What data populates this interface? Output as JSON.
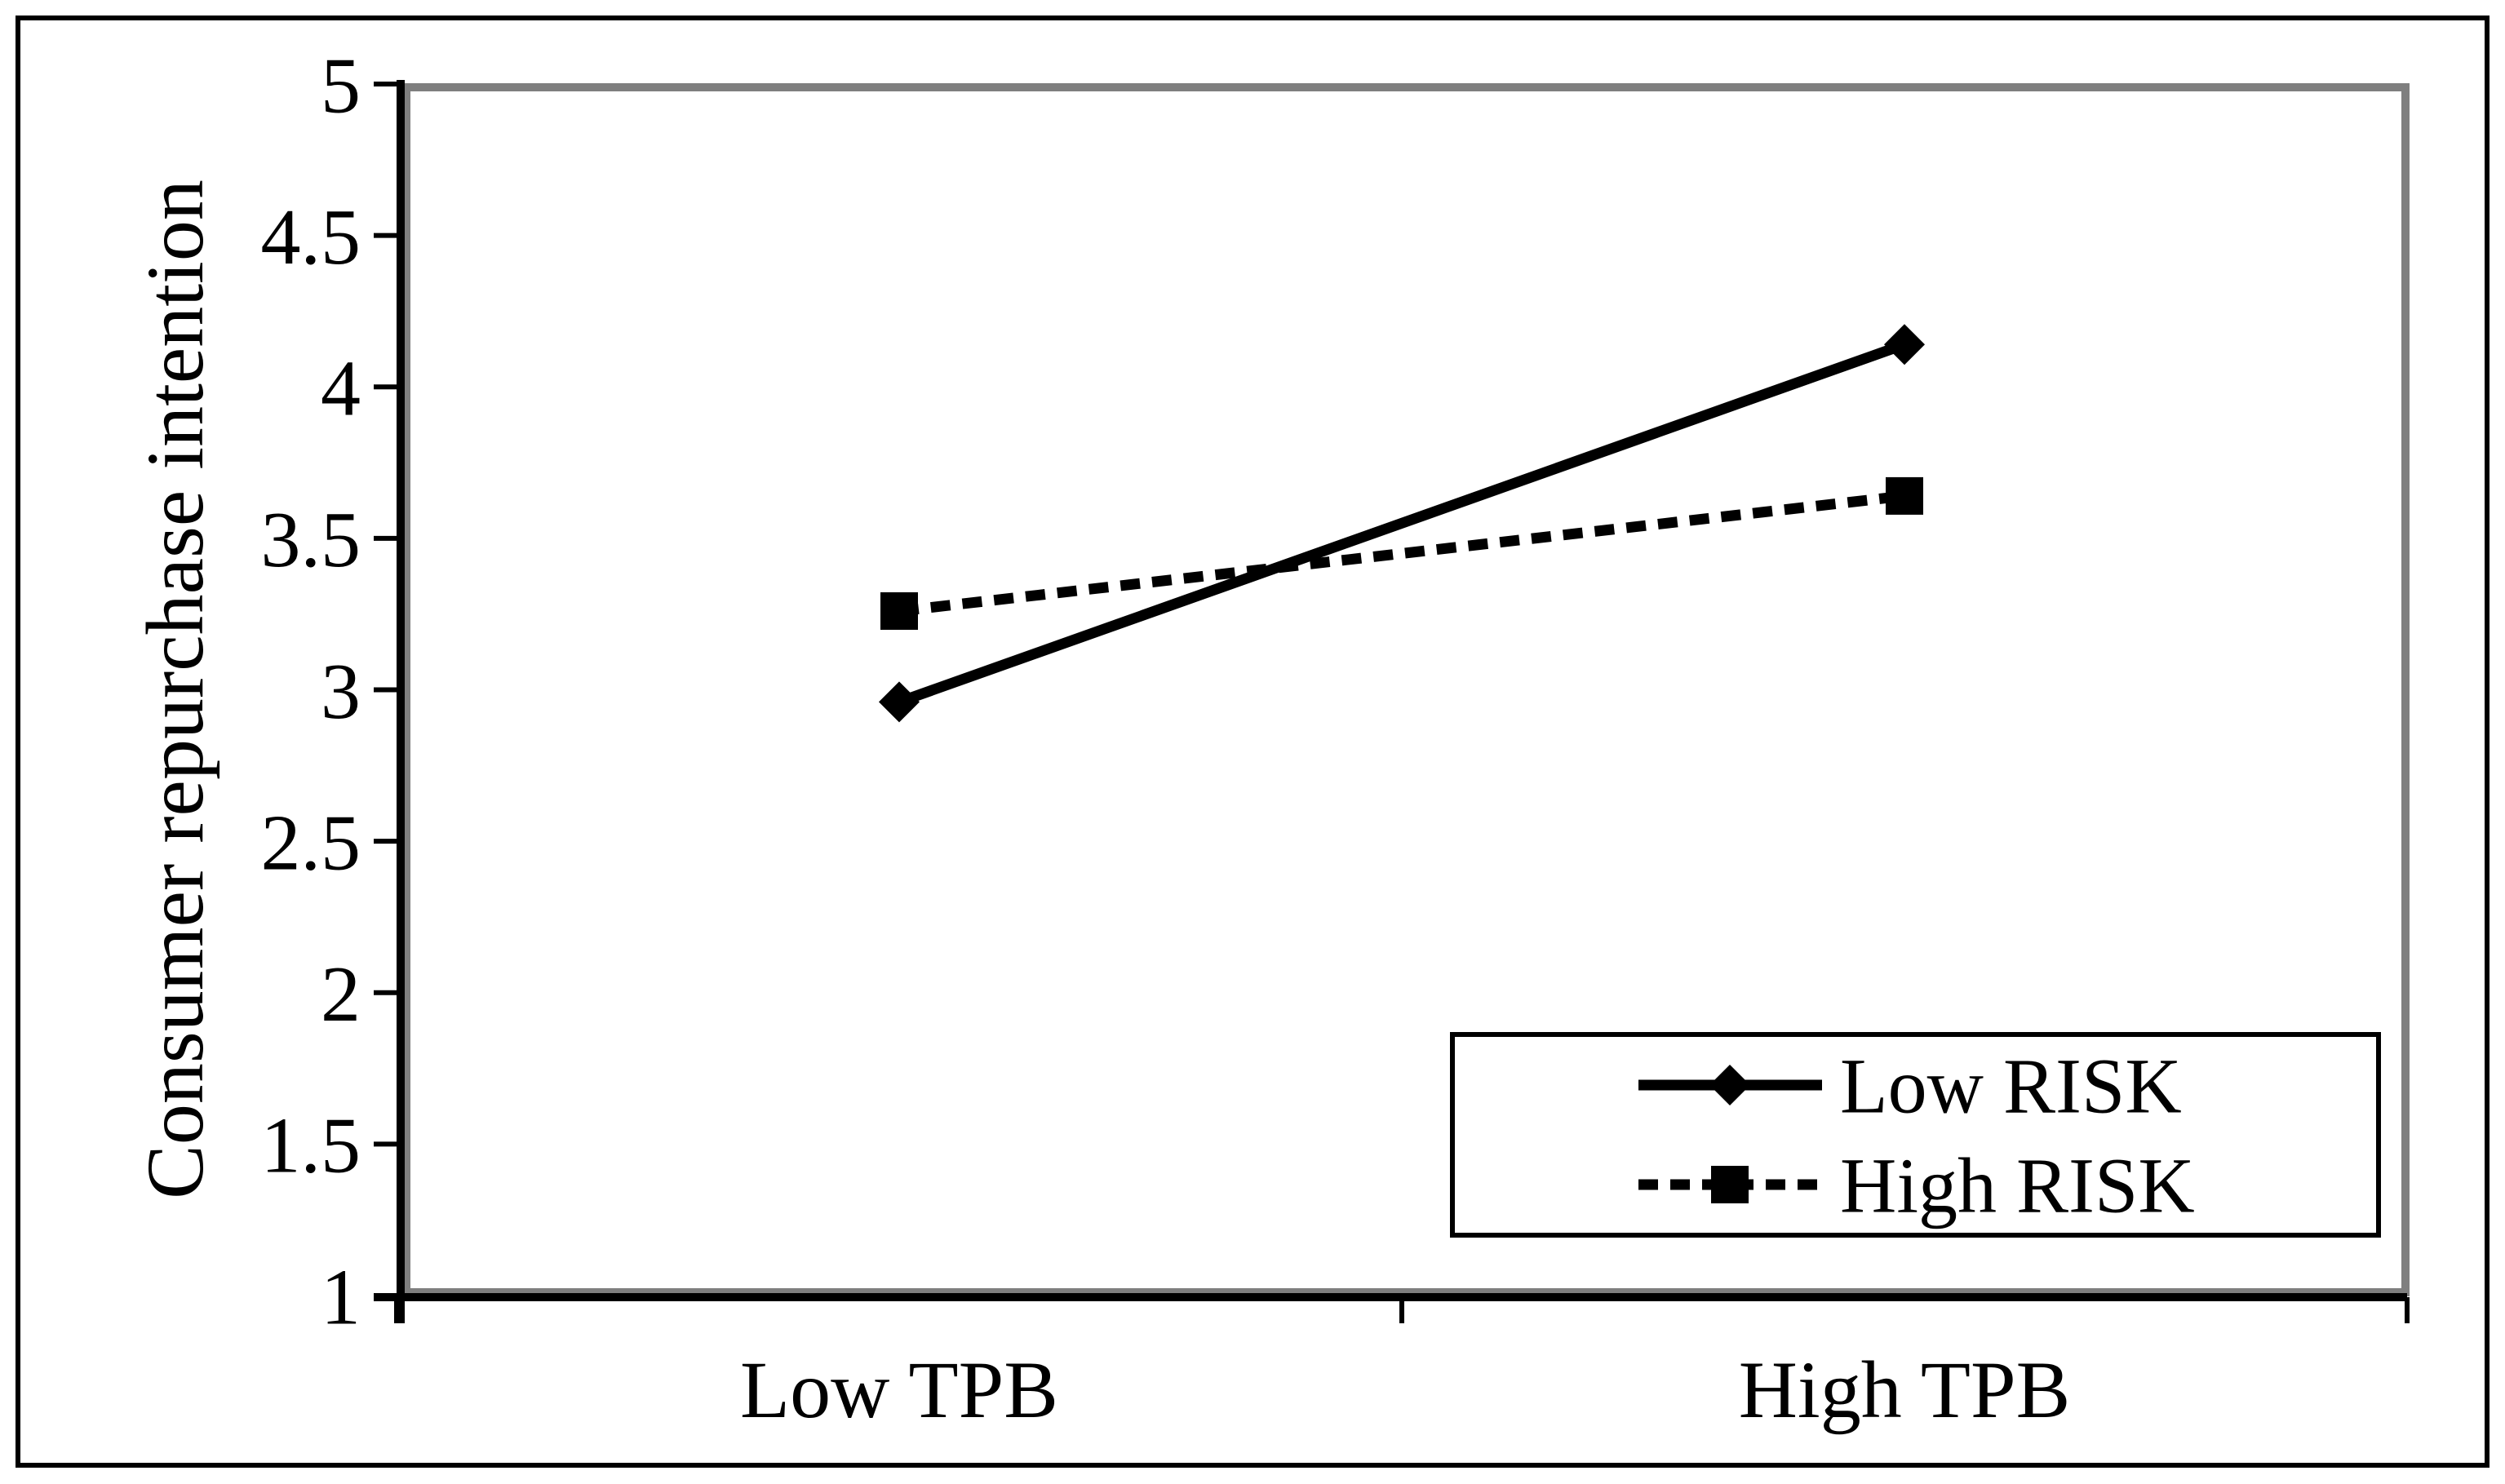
{
  "figure": {
    "background": "#ffffff",
    "border_color": "#000000"
  },
  "chart_data": {
    "type": "line",
    "title": "",
    "categories": [
      "Low TPB",
      "High TPB"
    ],
    "series": [
      {
        "name": "Low RISK",
        "values": [
          2.96,
          4.14
        ],
        "line_style": "solid",
        "marker": "diamond",
        "color": "#000000"
      },
      {
        "name": "High RISK",
        "values": [
          3.26,
          3.64
        ],
        "line_style": "dashed",
        "marker": "square",
        "color": "#000000"
      }
    ],
    "xlabel": "",
    "ylabel": "Consumer repurchase intention",
    "ylim": [
      1,
      5
    ],
    "ytick_step": 0.5,
    "ytick_labels": [
      "1",
      "1.5",
      "2",
      "2.5",
      "3",
      "3.5",
      "4",
      "4.5",
      "5"
    ],
    "grid": false,
    "legend": {
      "position": "inside-bottom-right",
      "entries": [
        "Low RISK",
        "High RISK"
      ]
    },
    "axis_color": "#000000",
    "plot_border_color": "#7f7f7f"
  }
}
